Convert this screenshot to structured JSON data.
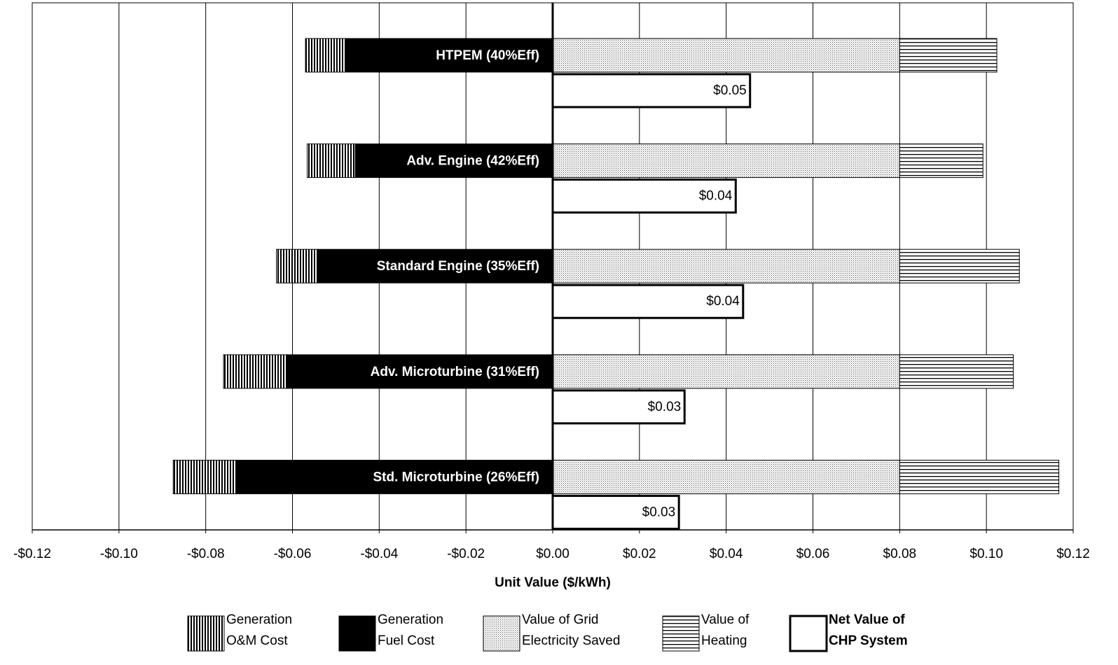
{
  "chart_data": {
    "type": "bar",
    "orientation": "horizontal",
    "x_label": "Unit Value ($/kWh)",
    "categories": [
      "HTPEM (40%Eff)",
      "Adv. Engine (42%Eff)",
      "Standard Engine (35%Eff)",
      "Adv. Microturbine (31%Eff)",
      "Std. Microturbine (26%Eff)"
    ],
    "series": [
      {
        "name": "Generation\nO&M Cost",
        "pattern": "vertical-lines",
        "values": [
          -0.0094,
          -0.0111,
          -0.0094,
          -0.0147,
          -0.0147
        ]
      },
      {
        "name": "Generation\nFuel Cost",
        "pattern": "solid-black",
        "values": [
          -0.0476,
          -0.0455,
          -0.0543,
          -0.0612,
          -0.0728
        ]
      },
      {
        "name": "Value of Grid\nElectricity Saved",
        "pattern": "dots",
        "values": [
          0.08,
          0.08,
          0.08,
          0.08,
          0.08
        ]
      },
      {
        "name": "Value of\nHeating",
        "pattern": "horizontal-lines",
        "values": [
          0.0224,
          0.0192,
          0.0276,
          0.0262,
          0.0367
        ]
      },
      {
        "name": "Net Value of\nCHP System",
        "pattern": "white-bold-outline",
        "separate_bar": true,
        "values": [
          0.0455,
          0.0422,
          0.0439,
          0.0304,
          0.0291
        ],
        "value_labels": [
          "$0.05",
          "$0.04",
          "$0.04",
          "$0.03",
          "$0.03"
        ]
      }
    ],
    "xlim": [
      -0.12,
      0.12
    ],
    "xticks": [
      {
        "value": -0.12,
        "label": "-$0.12"
      },
      {
        "value": -0.1,
        "label": "-$0.10"
      },
      {
        "value": -0.08,
        "label": "-$0.08"
      },
      {
        "value": -0.06,
        "label": "-$0.06"
      },
      {
        "value": -0.04,
        "label": "-$0.04"
      },
      {
        "value": -0.02,
        "label": "-$0.02"
      },
      {
        "value": 0,
        "label": "$0.00"
      },
      {
        "value": 0.02,
        "label": "$0.02"
      },
      {
        "value": 0.04,
        "label": "$0.04"
      },
      {
        "value": 0.06,
        "label": "$0.06"
      },
      {
        "value": 0.08,
        "label": "$0.08"
      },
      {
        "value": 0.1,
        "label": "$0.10"
      },
      {
        "value": 0.12,
        "label": "$0.12"
      }
    ],
    "grid": true,
    "legend": "bottom"
  }
}
